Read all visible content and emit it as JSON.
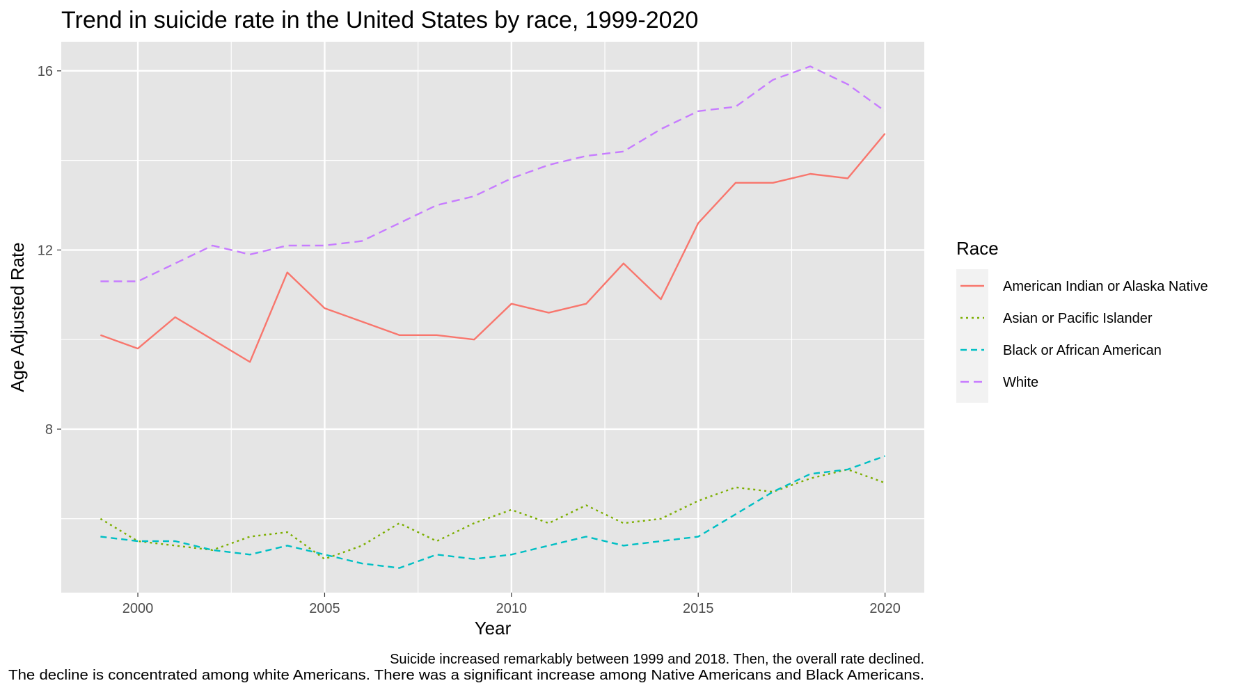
{
  "chart_data": {
    "type": "line",
    "title": "Trend in suicide rate in the United States by race, 1999-2020",
    "xlabel": "Year",
    "ylabel": "Age Adjusted Rate",
    "x": [
      1999,
      2000,
      2001,
      2002,
      2003,
      2004,
      2005,
      2006,
      2007,
      2008,
      2009,
      2010,
      2011,
      2012,
      2013,
      2014,
      2015,
      2016,
      2017,
      2018,
      2019,
      2020
    ],
    "xlim": [
      1997.95,
      2021.05
    ],
    "ylim": [
      4.35,
      16.65
    ],
    "x_ticks": [
      2000,
      2005,
      2010,
      2015,
      2020
    ],
    "y_ticks": [
      8,
      12,
      16
    ],
    "grid": true,
    "background": "#e5e5e5",
    "legend": {
      "title": "Race",
      "position": "right"
    },
    "series": [
      {
        "name": "American Indian or Alaska Native",
        "color": "#f8766d",
        "linetype": "solid",
        "values": [
          10.1,
          9.8,
          10.5,
          10.0,
          9.5,
          11.5,
          10.7,
          10.4,
          10.1,
          10.1,
          10.0,
          10.8,
          10.6,
          10.8,
          11.7,
          10.9,
          12.6,
          13.5,
          13.5,
          13.7,
          13.6,
          14.6
        ]
      },
      {
        "name": "Asian or Pacific Islander",
        "color": "#7cae00",
        "linetype": "dotted",
        "values": [
          6.0,
          5.5,
          5.4,
          5.3,
          5.6,
          5.7,
          5.1,
          5.4,
          5.9,
          5.5,
          5.9,
          6.2,
          5.9,
          6.3,
          5.9,
          6.0,
          6.4,
          6.7,
          6.6,
          6.9,
          7.1,
          6.8
        ]
      },
      {
        "name": "Black or African American",
        "color": "#00bfc4",
        "linetype": "dashed",
        "values": [
          5.6,
          5.5,
          5.5,
          5.3,
          5.2,
          5.4,
          5.2,
          5.0,
          4.9,
          5.2,
          5.1,
          5.2,
          5.4,
          5.6,
          5.4,
          5.5,
          5.6,
          6.1,
          6.6,
          7.0,
          7.1,
          7.4
        ]
      },
      {
        "name": "White",
        "color": "#c77cff",
        "linetype": "longdash",
        "values": [
          11.3,
          11.3,
          11.7,
          12.1,
          11.9,
          12.1,
          12.1,
          12.2,
          12.6,
          13.0,
          13.2,
          13.6,
          13.9,
          14.1,
          14.2,
          14.7,
          15.1,
          15.2,
          15.8,
          16.1,
          15.7,
          15.1
        ]
      }
    ],
    "caption": [
      "Suicide increased remarkably between 1999 and 2018. Then, the overall rate declined.",
      "The decline is concentrated among white Americans. There was a significant increase among Native Americans and Black Americans."
    ]
  }
}
